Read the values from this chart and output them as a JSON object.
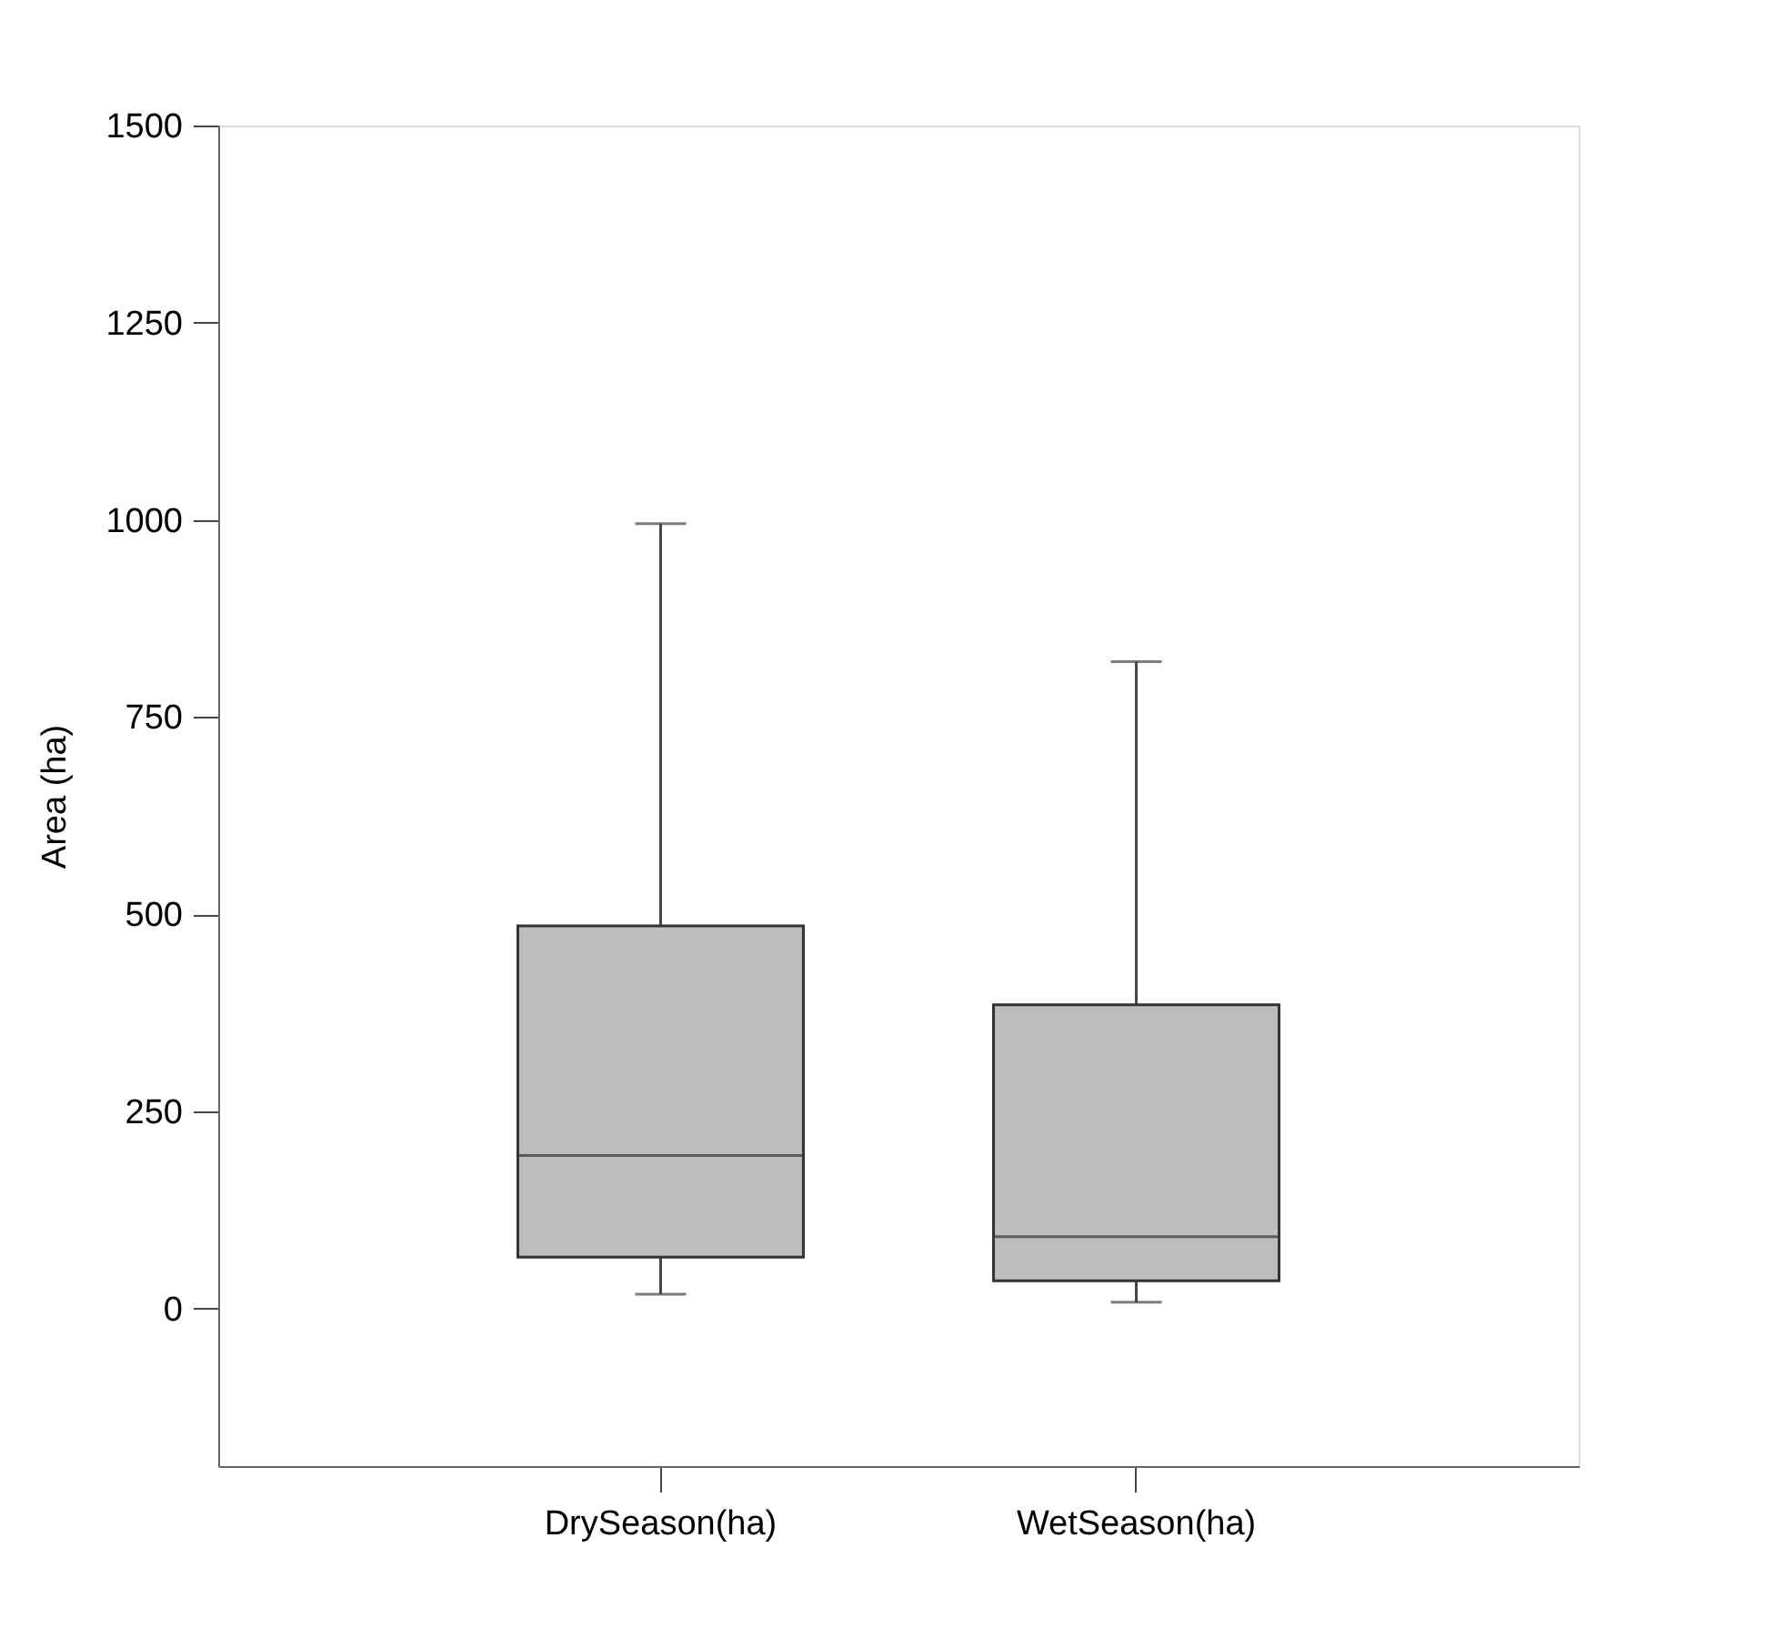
{
  "chart_data": {
    "type": "box",
    "ylabel": "Area (ha)",
    "categories": [
      "DrySeason(ha)",
      "WetSeason(ha)"
    ],
    "series": [
      {
        "color": "#bdbdbd",
        "boxes": [
          {
            "low": 18,
            "q1": 65,
            "median": 194,
            "q3": 485,
            "high": 995
          },
          {
            "low": 8,
            "q1": 35,
            "median": 91,
            "q3": 385,
            "high": 820
          }
        ]
      }
    ],
    "ylim": [
      -200,
      1500
    ],
    "yticks": [
      0,
      250,
      500,
      750,
      1000,
      1250,
      1500
    ],
    "grid": false
  }
}
